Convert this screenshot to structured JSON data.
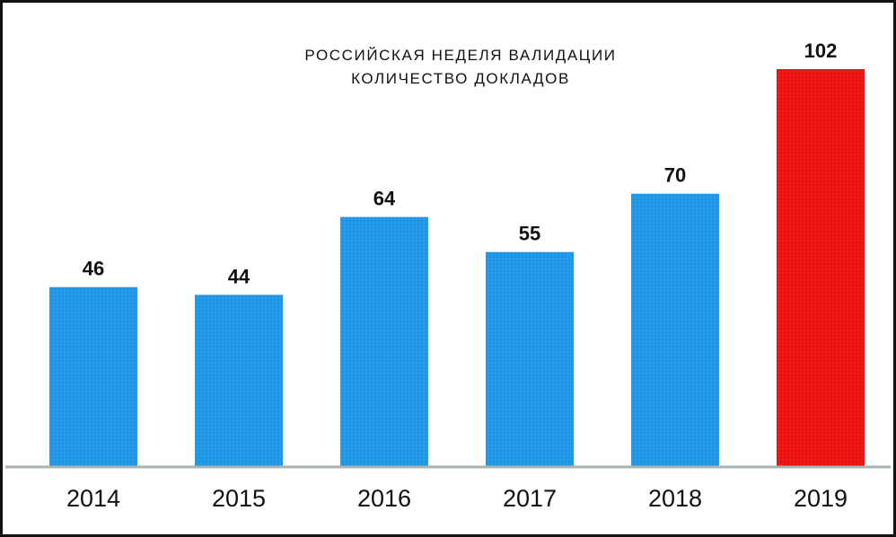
{
  "chart_data": {
    "type": "bar",
    "title": "РОССИЙСКАЯ НЕДЕЛЯ ВАЛИДАЦИИ",
    "subtitle": "КОЛИЧЕСТВО ДОКЛАДОВ",
    "xlabel": "",
    "ylabel": "",
    "categories": [
      "2014",
      "2015",
      "2016",
      "2017",
      "2018",
      "2019"
    ],
    "values": [
      46,
      44,
      64,
      55,
      70,
      102
    ],
    "value_labels": [
      "46",
      "44",
      "64",
      "55",
      "70",
      "102"
    ],
    "ylim": [
      0,
      102
    ],
    "grid": false,
    "legend": "none",
    "colors": {
      "default_bar": "#1e96e6",
      "highlight_bar": "#ee1111",
      "highlight_category": "2019",
      "axis": "#a8b4b4",
      "text": "#111111",
      "border": "#111111"
    }
  }
}
